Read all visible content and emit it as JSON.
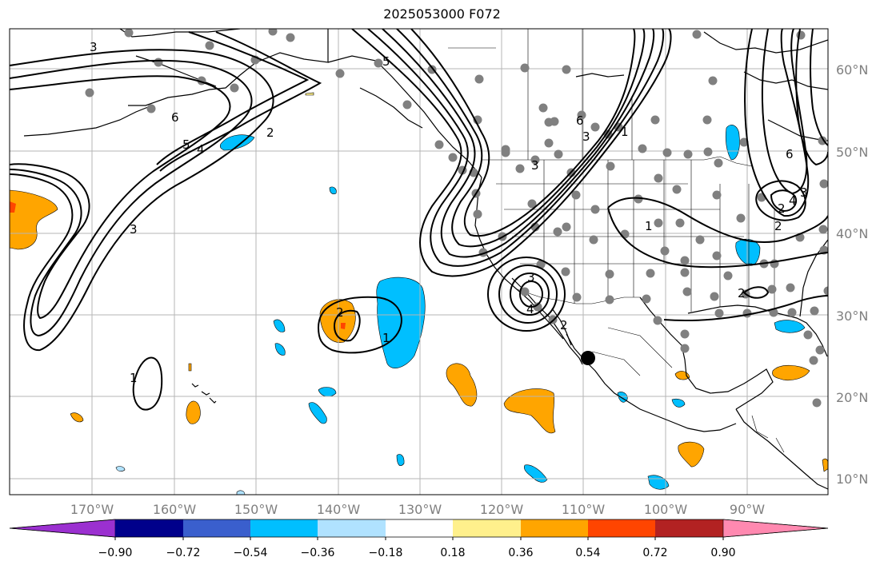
{
  "title": "2025053000 F072",
  "map": {
    "lon_labels": [
      "170°W",
      "160°W",
      "150°W",
      "140°W",
      "130°W",
      "120°W",
      "110°W",
      "100°W",
      "90°W"
    ],
    "lat_labels": [
      "60°N",
      "50°N",
      "40°N",
      "30°N",
      "20°N",
      "10°N"
    ],
    "contour_labels": [
      "3",
      "6",
      "5",
      "4",
      "2",
      "3",
      "5",
      "3",
      "6",
      "3",
      "1",
      "4",
      "3",
      "2",
      "1",
      "2",
      "1",
      "1",
      "2",
      "3",
      "4",
      "6",
      "2",
      "2"
    ]
  },
  "colorbar": {
    "ticks": [
      "−0.90",
      "−0.72",
      "−0.54",
      "−0.36",
      "−0.18",
      "0.18",
      "0.36",
      "0.54",
      "0.72",
      "0.90"
    ],
    "colors": [
      "#9b30d0",
      "#00008b",
      "#3a5fcd",
      "#00bfff",
      "#b0e2ff",
      "#ffffff",
      "#fff08c",
      "#ffa500",
      "#ff4500",
      "#b22222",
      "#ff89b0"
    ]
  }
}
